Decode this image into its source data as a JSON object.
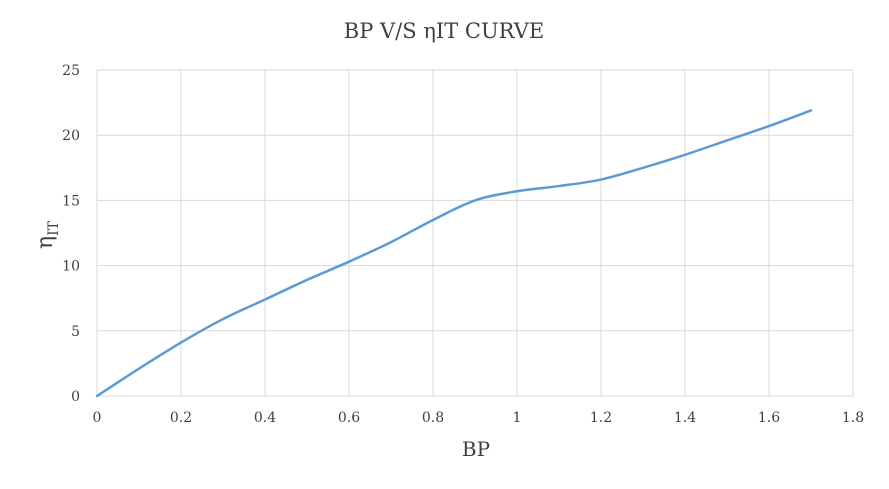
{
  "chart_data": {
    "type": "line",
    "title": "BP V/S ηIT CURVE",
    "xlabel": "BP",
    "ylabel_main": "η",
    "ylabel_sub": "IT",
    "xlim": [
      0,
      1.8
    ],
    "ylim": [
      0,
      25
    ],
    "xticks": [
      "0",
      "0.2",
      "0.4",
      "0.6",
      "0.8",
      "1",
      "1.2",
      "1.4",
      "1.6",
      "1.8"
    ],
    "yticks": [
      "0",
      "5",
      "10",
      "15",
      "20",
      "25"
    ],
    "grid": true,
    "series": [
      {
        "color": "#5b9bd5",
        "x": [
          0,
          0.1,
          0.2,
          0.3,
          0.4,
          0.5,
          0.6,
          0.7,
          0.8,
          0.9,
          1.0,
          1.1,
          1.2,
          1.3,
          1.4,
          1.5,
          1.6,
          1.7
        ],
        "y": [
          0,
          2.1,
          4.1,
          5.9,
          7.4,
          8.9,
          10.3,
          11.8,
          13.5,
          15.0,
          15.7,
          16.1,
          16.6,
          17.5,
          18.5,
          19.6,
          20.7,
          21.9
        ]
      }
    ]
  }
}
